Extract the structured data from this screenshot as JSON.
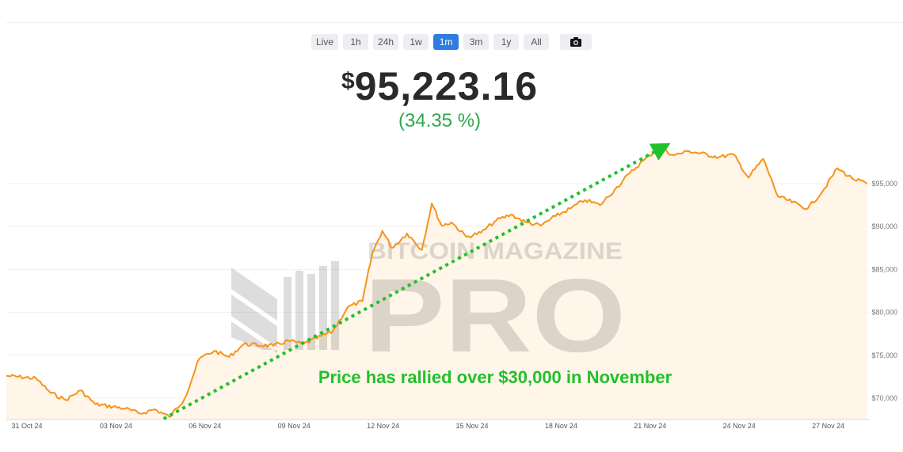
{
  "time_ranges": [
    {
      "label": "Live"
    },
    {
      "label": "1h"
    },
    {
      "label": "24h"
    },
    {
      "label": "1w"
    },
    {
      "label": "1m",
      "active": true
    },
    {
      "label": "3m"
    },
    {
      "label": "1y"
    },
    {
      "label": "All"
    }
  ],
  "camera_icon": "camera-icon",
  "price": {
    "currency": "$",
    "value": "95,223.16"
  },
  "change": "(34.35 %)",
  "watermark": {
    "top": "BITCOIN MAGAZINE",
    "main": "PRO"
  },
  "colors": {
    "line": "#f7931a",
    "area": "#fff5e8",
    "annotation": "#22c02c",
    "active_range": "#2e7ce0"
  },
  "chart_data": {
    "type": "area",
    "x_start": "2024-10-31",
    "x_end": "2024-11-29",
    "x_tick_labels": [
      "31 Oct 24",
      "03 Nov 24",
      "06 Nov 24",
      "09 Nov 24",
      "12 Nov 24",
      "15 Nov 24",
      "18 Nov 24",
      "21 Nov 24",
      "24 Nov 24",
      "27 Nov 24"
    ],
    "y_ticks": [
      70000,
      75000,
      80000,
      85000,
      90000,
      95000
    ],
    "y_tick_labels": [
      "$70,000",
      "$75,000",
      "$80,000",
      "$85,000",
      "$90,000",
      "$95,000"
    ],
    "ylim": [
      67500,
      100500
    ],
    "points": [
      [
        "2024-10-31",
        72600
      ],
      [
        "2024-11-01",
        72300
      ],
      [
        "2024-11-01",
        70600
      ],
      [
        "2024-11-02",
        69800
      ],
      [
        "2024-11-02",
        70900
      ],
      [
        "2024-11-03",
        69300
      ],
      [
        "2024-11-04",
        68800
      ],
      [
        "2024-11-04",
        68200
      ],
      [
        "2024-11-05",
        68700
      ],
      [
        "2024-11-05",
        67800
      ],
      [
        "2024-11-06",
        69900
      ],
      [
        "2024-11-06",
        74600
      ],
      [
        "2024-11-07",
        75500
      ],
      [
        "2024-11-07",
        74800
      ],
      [
        "2024-11-08",
        76300
      ],
      [
        "2024-11-09",
        76100
      ],
      [
        "2024-11-09",
        76700
      ],
      [
        "2024-11-10",
        76300
      ],
      [
        "2024-11-11",
        77800
      ],
      [
        "2024-11-11",
        80600
      ],
      [
        "2024-11-12",
        81300
      ],
      [
        "2024-11-12",
        86900
      ],
      [
        "2024-11-12",
        89500
      ],
      [
        "2024-11-13",
        87500
      ],
      [
        "2024-11-13",
        89200
      ],
      [
        "2024-11-14",
        87300
      ],
      [
        "2024-11-14",
        92700
      ],
      [
        "2024-11-14",
        90100
      ],
      [
        "2024-11-15",
        90500
      ],
      [
        "2024-11-15",
        88800
      ],
      [
        "2024-11-16",
        89300
      ],
      [
        "2024-11-16",
        90700
      ],
      [
        "2024-11-17",
        91400
      ],
      [
        "2024-11-17",
        90500
      ],
      [
        "2024-11-18",
        90100
      ],
      [
        "2024-11-18",
        91200
      ],
      [
        "2024-11-19",
        92100
      ],
      [
        "2024-11-19",
        93100
      ],
      [
        "2024-11-20",
        92500
      ],
      [
        "2024-11-20",
        94300
      ],
      [
        "2024-11-21",
        96200
      ],
      [
        "2024-11-21",
        97800
      ],
      [
        "2024-11-22",
        99200
      ],
      [
        "2024-11-22",
        98300
      ],
      [
        "2024-11-23",
        98800
      ],
      [
        "2024-11-24",
        98100
      ],
      [
        "2024-11-24",
        98400
      ],
      [
        "2024-11-25",
        95700
      ],
      [
        "2024-11-25",
        97900
      ],
      [
        "2024-11-26",
        93500
      ],
      [
        "2024-11-27",
        92100
      ],
      [
        "2024-11-27",
        94100
      ],
      [
        "2024-11-28",
        96800
      ],
      [
        "2024-11-28",
        95600
      ],
      [
        "2024-11-29",
        95000
      ]
    ],
    "trend_arrow": {
      "from": [
        "2024-11-05",
        67600
      ],
      "to": [
        "2024-11-22",
        99200
      ]
    },
    "annotation": "Price has rallied over $30,000 in November",
    "grid": true
  }
}
